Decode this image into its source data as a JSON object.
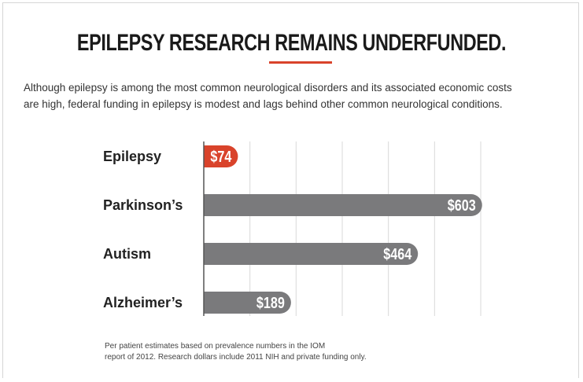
{
  "header": {
    "title": "EPILEPSY RESEARCH REMAINS UNDERFUNDED.",
    "subtitle_lines": [
      "Although epilepsy is among the most common neurological disorders and its associated economic costs",
      "are high, federal funding in epilepsy is modest and lags behind other common neurological conditions."
    ]
  },
  "chart_data": {
    "type": "bar",
    "orientation": "horizontal",
    "categories": [
      "Epilepsy",
      "Parkinson’s",
      "Autism",
      "Alzheimer’s"
    ],
    "values": [
      74,
      603,
      464,
      189
    ],
    "value_labels": [
      "$74",
      "$603",
      "$464",
      "$189"
    ],
    "xlim": [
      0,
      600
    ],
    "grid": true,
    "gridline_step": 100,
    "highlight_category": "Epilepsy",
    "colors": {
      "highlight": "#d9432b",
      "default": "#7a7a7c",
      "grid": "#d9d9d9",
      "axis": "#555555"
    }
  },
  "footnote_lines": [
    "Per patient estimates based on prevalence numbers in the IOM",
    "report of 2012. Research dollars include 2011 NIH and private funding only."
  ]
}
